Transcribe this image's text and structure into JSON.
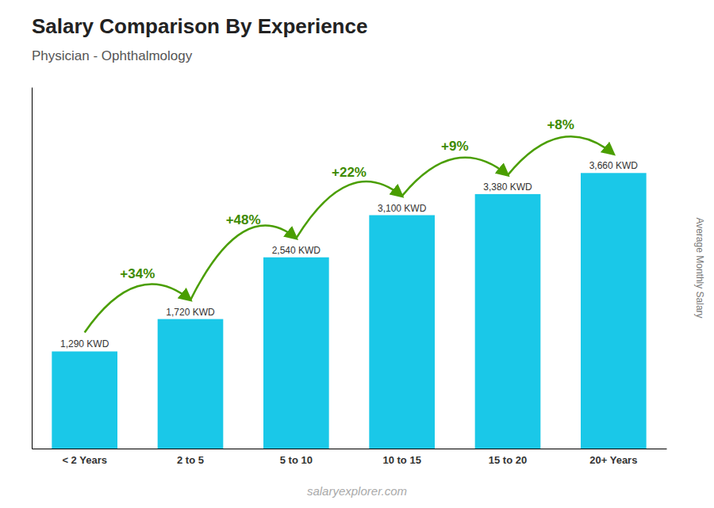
{
  "chart_data": {
    "type": "bar",
    "title": "Salary Comparison By Experience",
    "subtitle": "Physician - Ophthalmology",
    "y_label": "Average Monthly Salary",
    "categories": [
      "< 2 Years",
      "2 to 5",
      "5 to 10",
      "10 to 15",
      "15 to 20",
      "20+ Years"
    ],
    "values": [
      1290,
      1720,
      2540,
      3100,
      3380,
      3660
    ],
    "value_labels": [
      "1,290 KWD",
      "1,720 KWD",
      "2,540 KWD",
      "3,100 KWD",
      "3,380 KWD",
      "3,660 KWD"
    ],
    "data_labels": true,
    "annotations": [
      "+34%",
      "+48%",
      "+22%",
      "+9%",
      "+8%"
    ],
    "watermark": "salaryexplorer.com",
    "color": "#1ac8e8",
    "ylim": [
      0,
      4800
    ],
    "tick_labels": "x",
    "grid": false
  }
}
